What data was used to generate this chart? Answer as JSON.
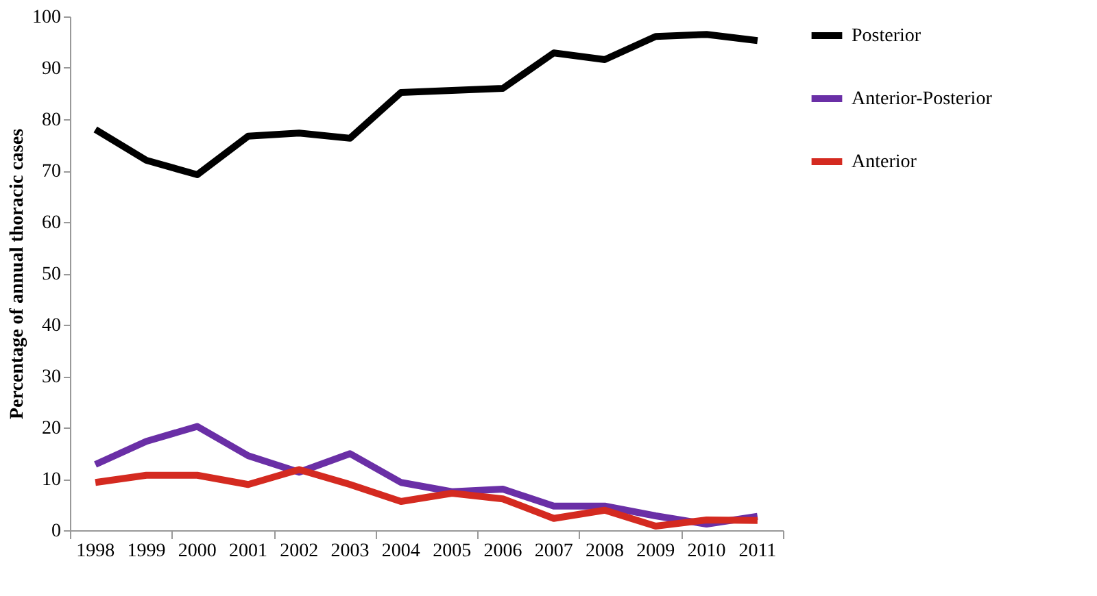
{
  "chart_data": {
    "type": "line",
    "ylabel": "Percentage of annual thoracic cases",
    "categories": [
      "1998",
      "1999",
      "2000",
      "2001",
      "2002",
      "2003",
      "2004",
      "2005",
      "2006",
      "2007",
      "2008",
      "2009",
      "2010",
      "2011"
    ],
    "series": [
      {
        "name": "Posterior",
        "color": "#000000",
        "values": [
          78,
          72,
          69.2,
          76.7,
          77.3,
          76.3,
          85.2,
          85.6,
          86,
          92.9,
          91.6,
          96.1,
          96.5,
          95.3
        ]
      },
      {
        "name": "Anterior-Posterior",
        "color": "#6a2fa6",
        "values": [
          12.8,
          17.3,
          20.2,
          14.5,
          11.3,
          14.9,
          9.3,
          7.5,
          8,
          4.7,
          4.7,
          2.8,
          1.2,
          2.7
        ]
      },
      {
        "name": "Anterior",
        "color": "#d42a20",
        "values": [
          9.3,
          10.7,
          10.7,
          8.9,
          11.8,
          8.9,
          5.6,
          7.2,
          6.1,
          2.3,
          3.9,
          0.8,
          2,
          1.9
        ]
      }
    ],
    "ylim": [
      0,
      100
    ],
    "yticks": [
      0,
      10,
      20,
      30,
      40,
      50,
      60,
      70,
      80,
      90,
      100
    ],
    "grid": false,
    "legend": "right",
    "marker": "none",
    "line_style": "solid"
  }
}
